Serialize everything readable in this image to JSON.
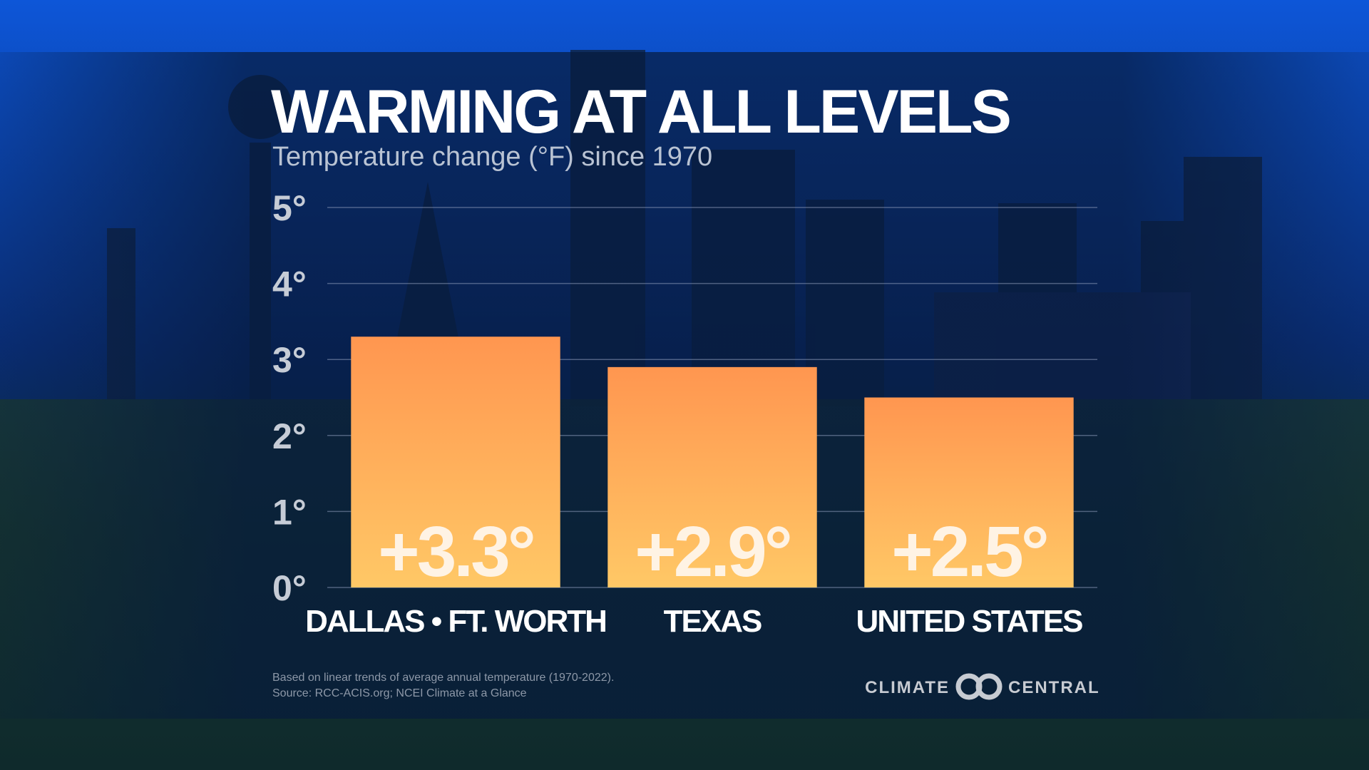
{
  "chart_data": {
    "type": "bar",
    "title": "WARMING AT ALL LEVELS",
    "subtitle": "Temperature change (°F) since 1970",
    "categories": [
      "DALLAS • FT. WORTH",
      "TEXAS",
      "UNITED STATES"
    ],
    "values": [
      3.3,
      2.9,
      2.5
    ],
    "value_labels": [
      "+3.3°",
      "+2.9°",
      "+2.5°"
    ],
    "color": [
      "#ff9650",
      "#ffc866"
    ],
    "ylim": [
      0,
      5
    ],
    "yticks": [
      {
        "value": 0,
        "label": "0°"
      },
      {
        "value": 1,
        "label": "1°"
      },
      {
        "value": 2,
        "label": "2°"
      },
      {
        "value": 3,
        "label": "3°"
      },
      {
        "value": 4,
        "label": "4°"
      },
      {
        "value": 5,
        "label": "5°"
      }
    ],
    "grid": true,
    "notes": [
      "Based on linear trends of average annual temperature (1970-2022).",
      "Source: RCC-ACIS.org; NCEI Climate at a Glance"
    ],
    "credit": [
      "CLIMATE",
      "CENTRAL"
    ]
  }
}
